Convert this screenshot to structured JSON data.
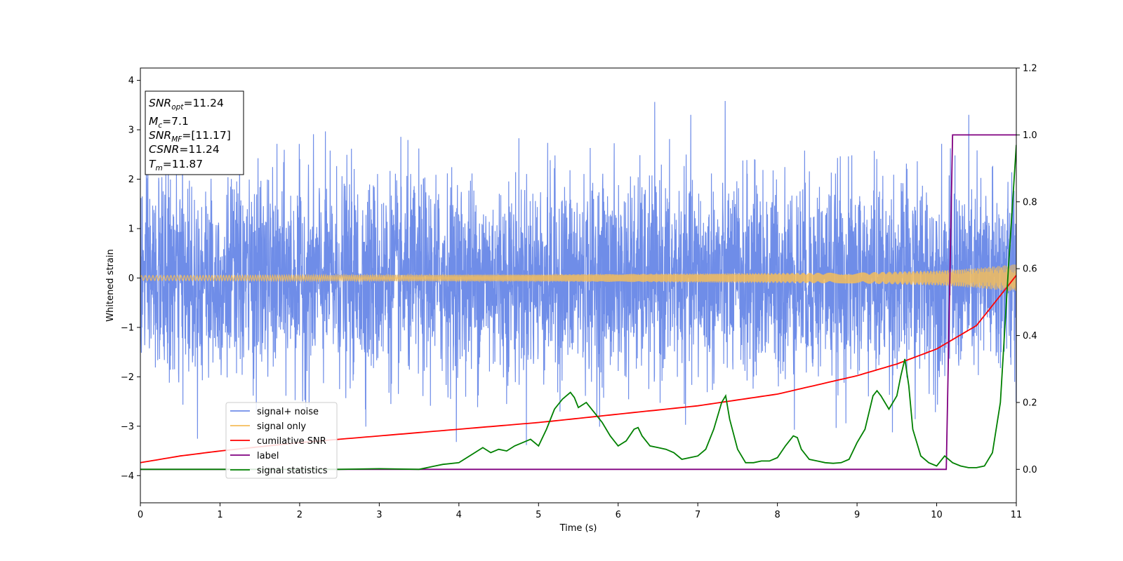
{
  "chart_data": {
    "type": "line",
    "xlabel": "Time (s)",
    "ylabel": "Whitened strain",
    "xlim": [
      0,
      11
    ],
    "ylim": [
      -4.55,
      4.25
    ],
    "y2lim": [
      -0.1,
      1.2
    ],
    "x_ticks": [
      0,
      1,
      2,
      3,
      4,
      5,
      6,
      7,
      8,
      9,
      10,
      11
    ],
    "y_ticks": [
      4,
      3,
      2,
      1,
      0,
      -1,
      -2,
      -3,
      -4
    ],
    "y_tick_labels": [
      "4",
      "3",
      "2",
      "1",
      "0",
      "−1",
      "−2",
      "−3",
      "−4"
    ],
    "y2_ticks": [
      0.0,
      0.2,
      0.4,
      0.6,
      0.8,
      1.0,
      1.2
    ],
    "y2_tick_labels": [
      "0.0",
      "0.2",
      "0.4",
      "0.6",
      "0.8",
      "1.0",
      "1.2"
    ],
    "grid": false,
    "legend_position": "lower-left",
    "info_box": {
      "snr_opt": "11.24",
      "mc": "7.1",
      "snr_mf": "[11.17]",
      "csnr": "11.24",
      "tm": "11.87"
    },
    "series": [
      {
        "name": "signal+ noise",
        "color": "#6f8de8",
        "axis": "left",
        "description_level": "gaussian noise about 0 with spread of about ±2.5, peaks near ±3.8",
        "noise_std": 1.0
      },
      {
        "name": "signal only",
        "color": "#f5bd5a",
        "axis": "left",
        "amplitude": {
          "x": [
            0,
            5,
            9,
            10,
            10.5,
            11
          ],
          "y": [
            0.05,
            0.07,
            0.11,
            0.15,
            0.2,
            0.28
          ]
        }
      },
      {
        "name": "cumilative SNR",
        "color": "#ff0000",
        "axis": "right",
        "x": [
          0,
          0.5,
          1,
          2,
          3,
          4,
          5,
          6,
          7,
          8,
          9,
          9.5,
          10,
          10.5,
          11
        ],
        "y": [
          0.02,
          0.04,
          0.055,
          0.08,
          0.1,
          0.12,
          0.14,
          0.165,
          0.19,
          0.225,
          0.28,
          0.315,
          0.36,
          0.43,
          0.58
        ]
      },
      {
        "name": "label",
        "color": "#800080",
        "axis": "right",
        "x": [
          0,
          10.12,
          10.2,
          11
        ],
        "y": [
          0,
          0,
          1,
          1
        ]
      },
      {
        "name": "signal statistics",
        "color": "#008000",
        "axis": "right",
        "x": [
          0,
          0.5,
          1,
          1.5,
          2,
          2.5,
          3,
          3.5,
          3.7,
          3.8,
          4.0,
          4.2,
          4.3,
          4.4,
          4.5,
          4.6,
          4.7,
          4.8,
          4.9,
          5.0,
          5.1,
          5.2,
          5.3,
          5.4,
          5.45,
          5.5,
          5.6,
          5.7,
          5.8,
          5.9,
          6.0,
          6.1,
          6.2,
          6.25,
          6.3,
          6.4,
          6.5,
          6.6,
          6.7,
          6.8,
          6.9,
          7.0,
          7.1,
          7.2,
          7.3,
          7.35,
          7.4,
          7.5,
          7.6,
          7.7,
          7.8,
          7.9,
          8.0,
          8.1,
          8.2,
          8.25,
          8.3,
          8.4,
          8.5,
          8.6,
          8.7,
          8.8,
          8.9,
          9.0,
          9.1,
          9.2,
          9.25,
          9.3,
          9.4,
          9.5,
          9.55,
          9.6,
          9.65,
          9.7,
          9.8,
          9.9,
          10.0,
          10.1,
          10.2,
          10.3,
          10.4,
          10.5,
          10.6,
          10.7,
          10.8,
          10.9,
          11.0
        ],
        "y": [
          0.0,
          0.0,
          0.0,
          0.0,
          0.0,
          0.0,
          0.002,
          0.0,
          0.01,
          0.015,
          0.02,
          0.05,
          0.065,
          0.05,
          0.06,
          0.055,
          0.07,
          0.08,
          0.09,
          0.07,
          0.12,
          0.18,
          0.21,
          0.23,
          0.215,
          0.185,
          0.2,
          0.17,
          0.14,
          0.1,
          0.07,
          0.085,
          0.12,
          0.125,
          0.1,
          0.07,
          0.065,
          0.06,
          0.05,
          0.03,
          0.035,
          0.04,
          0.06,
          0.12,
          0.2,
          0.22,
          0.15,
          0.06,
          0.02,
          0.02,
          0.025,
          0.025,
          0.035,
          0.07,
          0.1,
          0.095,
          0.06,
          0.03,
          0.025,
          0.02,
          0.018,
          0.02,
          0.03,
          0.08,
          0.12,
          0.22,
          0.235,
          0.22,
          0.18,
          0.22,
          0.28,
          0.33,
          0.25,
          0.12,
          0.04,
          0.02,
          0.01,
          0.04,
          0.02,
          0.01,
          0.005,
          0.005,
          0.01,
          0.05,
          0.2,
          0.6,
          0.97
        ]
      }
    ]
  }
}
